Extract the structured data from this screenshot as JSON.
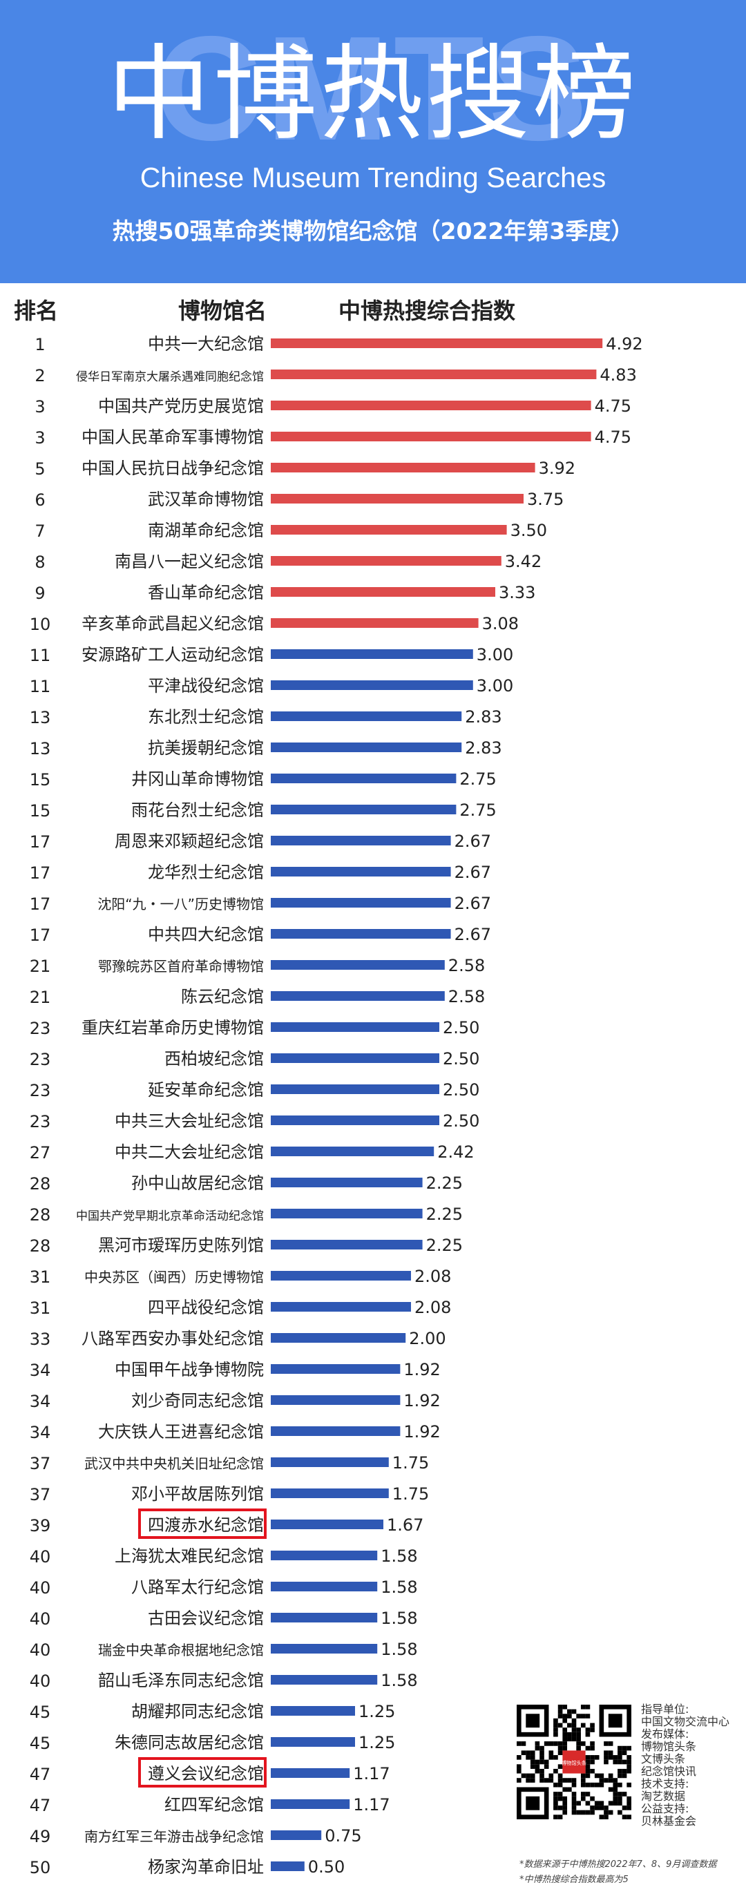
{
  "header": {
    "watermark": "CMTS",
    "title": "中博热搜榜",
    "subtitle_en": "Chinese Museum Trending Searches",
    "subtitle": "热搜50强革命类博物馆纪念馆（2022年第3季度）"
  },
  "colors": {
    "header_bg": "#4a86e6",
    "bar_top": "#de4b4b",
    "bar_rest": "#2f58b4",
    "highlight_box": "#e3141e"
  },
  "chart_data": {
    "type": "bar",
    "orientation": "horizontal",
    "columns": {
      "rank": "排名",
      "name": "博物馆名",
      "value": "中博热搜综合指数"
    },
    "xlim": [
      0,
      5
    ],
    "top_color_count": 10,
    "highlighted": [
      "四渡赤水纪念馆",
      "遵义会议纪念馆"
    ],
    "rows": [
      {
        "rank": "1",
        "name": "中共一大纪念馆",
        "value": 4.92
      },
      {
        "rank": "2",
        "name": "侵华日军南京大屠杀遇难同胞纪念馆",
        "value": 4.83
      },
      {
        "rank": "3",
        "name": "中国共产党历史展览馆",
        "value": 4.75
      },
      {
        "rank": "3",
        "name": "中国人民革命军事博物馆",
        "value": 4.75
      },
      {
        "rank": "5",
        "name": "中国人民抗日战争纪念馆",
        "value": 3.92
      },
      {
        "rank": "6",
        "name": "武汉革命博物馆",
        "value": 3.75
      },
      {
        "rank": "7",
        "name": "南湖革命纪念馆",
        "value": 3.5
      },
      {
        "rank": "8",
        "name": "南昌八一起义纪念馆",
        "value": 3.42
      },
      {
        "rank": "9",
        "name": "香山革命纪念馆",
        "value": 3.33
      },
      {
        "rank": "10",
        "name": "辛亥革命武昌起义纪念馆",
        "value": 3.08
      },
      {
        "rank": "11",
        "name": "安源路矿工人运动纪念馆",
        "value": 3.0
      },
      {
        "rank": "11",
        "name": "平津战役纪念馆",
        "value": 3.0
      },
      {
        "rank": "13",
        "name": "东北烈士纪念馆",
        "value": 2.83
      },
      {
        "rank": "13",
        "name": "抗美援朝纪念馆",
        "value": 2.83
      },
      {
        "rank": "15",
        "name": "井冈山革命博物馆",
        "value": 2.75
      },
      {
        "rank": "15",
        "name": "雨花台烈士纪念馆",
        "value": 2.75
      },
      {
        "rank": "17",
        "name": "周恩来邓颖超纪念馆",
        "value": 2.67
      },
      {
        "rank": "17",
        "name": "龙华烈士纪念馆",
        "value": 2.67
      },
      {
        "rank": "17",
        "name": "沈阳“九・一八”历史博物馆",
        "value": 2.67
      },
      {
        "rank": "17",
        "name": "中共四大纪念馆",
        "value": 2.67
      },
      {
        "rank": "21",
        "name": "鄂豫皖苏区首府革命博物馆",
        "value": 2.58
      },
      {
        "rank": "21",
        "name": "陈云纪念馆",
        "value": 2.58
      },
      {
        "rank": "23",
        "name": "重庆红岩革命历史博物馆",
        "value": 2.5
      },
      {
        "rank": "23",
        "name": "西柏坡纪念馆",
        "value": 2.5
      },
      {
        "rank": "23",
        "name": "延安革命纪念馆",
        "value": 2.5
      },
      {
        "rank": "23",
        "name": "中共三大会址纪念馆",
        "value": 2.5
      },
      {
        "rank": "27",
        "name": "中共二大会址纪念馆",
        "value": 2.42
      },
      {
        "rank": "28",
        "name": "孙中山故居纪念馆",
        "value": 2.25
      },
      {
        "rank": "28",
        "name": "中国共产党早期北京革命活动纪念馆",
        "value": 2.25
      },
      {
        "rank": "28",
        "name": "黑河市瑷珲历史陈列馆",
        "value": 2.25
      },
      {
        "rank": "31",
        "name": "中央苏区（闽西）历史博物馆",
        "value": 2.08
      },
      {
        "rank": "31",
        "name": "四平战役纪念馆",
        "value": 2.08
      },
      {
        "rank": "33",
        "name": "八路军西安办事处纪念馆",
        "value": 2.0
      },
      {
        "rank": "34",
        "name": "中国甲午战争博物院",
        "value": 1.92
      },
      {
        "rank": "34",
        "name": "刘少奇同志纪念馆",
        "value": 1.92
      },
      {
        "rank": "34",
        "name": "大庆铁人王进喜纪念馆",
        "value": 1.92
      },
      {
        "rank": "37",
        "name": "武汉中共中央机关旧址纪念馆",
        "value": 1.75
      },
      {
        "rank": "37",
        "name": "邓小平故居陈列馆",
        "value": 1.75
      },
      {
        "rank": "39",
        "name": "四渡赤水纪念馆",
        "value": 1.67
      },
      {
        "rank": "40",
        "name": "上海犹太难民纪念馆",
        "value": 1.58
      },
      {
        "rank": "40",
        "name": "八路军太行纪念馆",
        "value": 1.58
      },
      {
        "rank": "40",
        "name": "古田会议纪念馆",
        "value": 1.58
      },
      {
        "rank": "40",
        "name": "瑞金中央革命根据地纪念馆",
        "value": 1.58
      },
      {
        "rank": "40",
        "name": "韶山毛泽东同志纪念馆",
        "value": 1.58
      },
      {
        "rank": "45",
        "name": "胡耀邦同志纪念馆",
        "value": 1.25
      },
      {
        "rank": "45",
        "name": "朱德同志故居纪念馆",
        "value": 1.25
      },
      {
        "rank": "47",
        "name": "遵义会议纪念馆",
        "value": 1.17
      },
      {
        "rank": "47",
        "name": "红四军纪念馆",
        "value": 1.17
      },
      {
        "rank": "49",
        "name": "南方红军三年游击战争纪念馆",
        "value": 0.75
      },
      {
        "rank": "50",
        "name": "杨家沟革命旧址",
        "value": 0.5
      }
    ]
  },
  "footer": {
    "info": "指导单位:\n中国文物交流中心\n发布媒体:\n博物馆头条\n文博头条\n纪念馆快讯\n技术支持:\n淘艺数据\n公益支持:\n贝林基金会",
    "note1": "*数据来源于中博热搜2022年7、8、9月调查数据",
    "note2": "*中博热搜综合指数最高为5",
    "qr_label": "博物馆头条"
  }
}
